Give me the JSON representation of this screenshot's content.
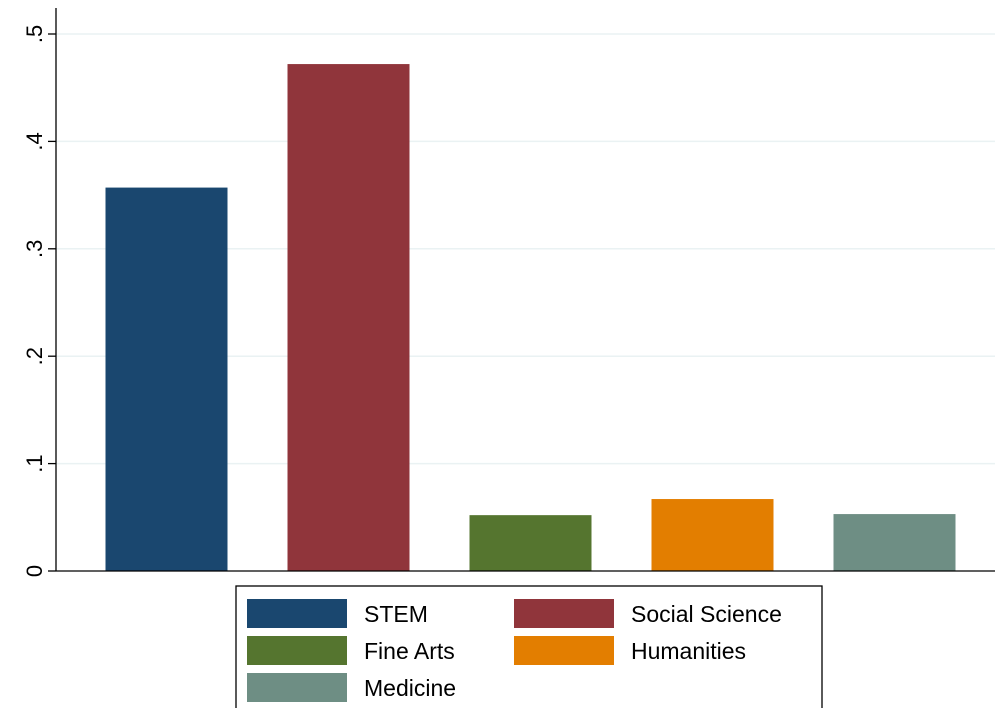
{
  "chart_data": {
    "type": "bar",
    "title": "",
    "xlabel": "",
    "ylabel": "",
    "categories": [
      "STEM",
      "Social Science",
      "Fine Arts",
      "Humanities",
      "Medicine"
    ],
    "values": [
      0.357,
      0.472,
      0.052,
      0.067,
      0.053
    ],
    "colors": [
      "#1a476f",
      "#90353b",
      "#55752f",
      "#e37e00",
      "#6e8e84"
    ],
    "ylim": [
      0,
      0.5
    ],
    "yticks": [
      0,
      0.1,
      0.2,
      0.3,
      0.4,
      0.5
    ],
    "ytick_labels": [
      "0",
      ".1",
      ".2",
      ".3",
      ".4",
      ".5"
    ],
    "grid": true,
    "legend": {
      "placement": "bottom",
      "entries": [
        "STEM",
        "Social Science",
        "Fine Arts",
        "Humanities",
        "Medicine"
      ]
    }
  }
}
